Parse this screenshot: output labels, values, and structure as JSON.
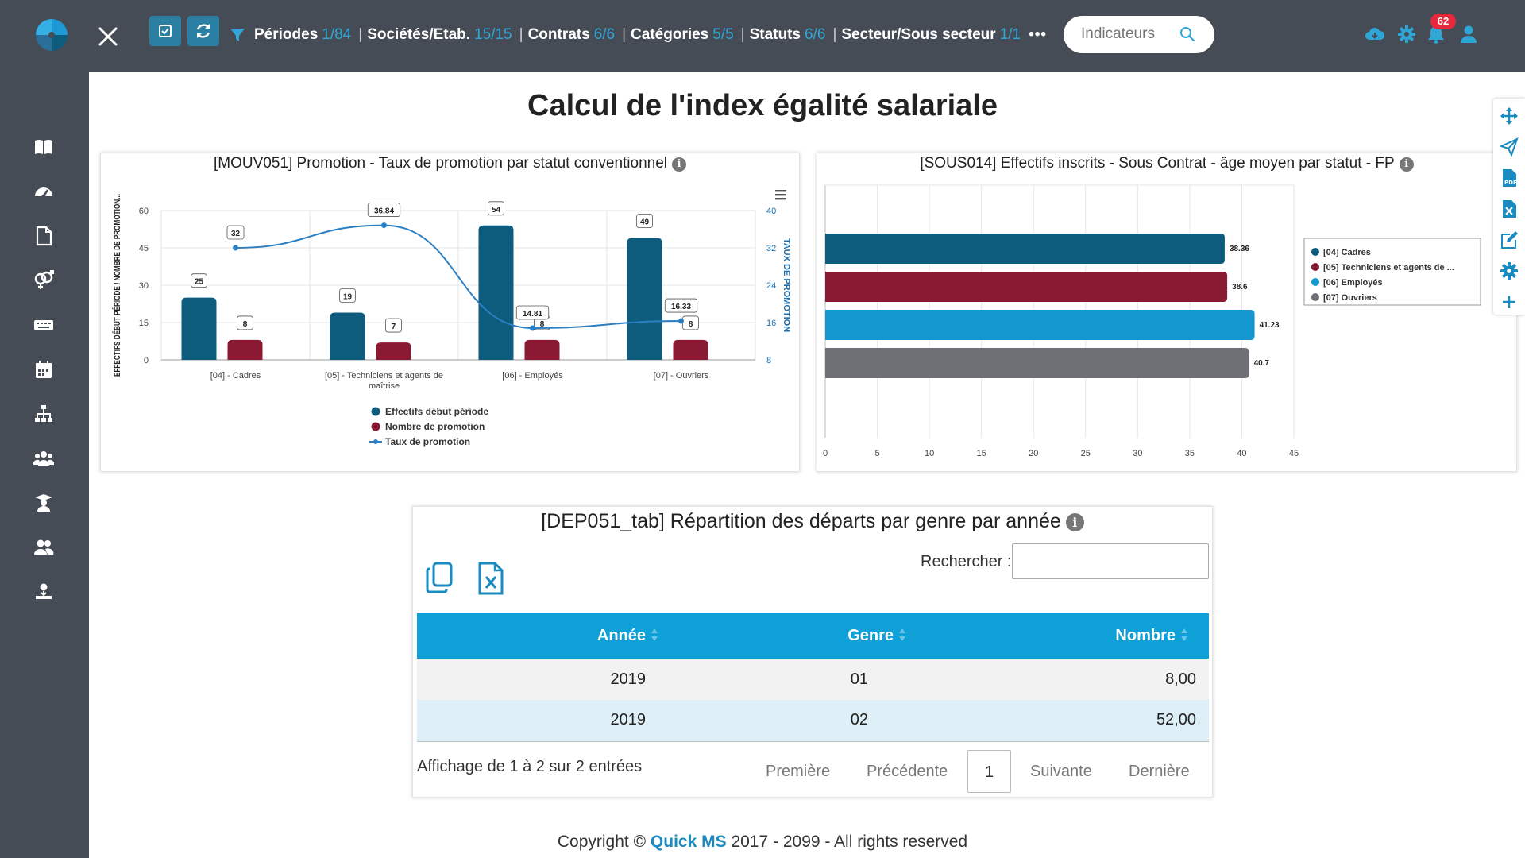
{
  "topbar": {
    "filters": [
      {
        "label": "Périodes",
        "count": "1/84"
      },
      {
        "label": "Sociétés/Etab.",
        "count": "15/15"
      },
      {
        "label": "Contrats",
        "count": "6/6"
      },
      {
        "label": "Catégories",
        "count": "5/5"
      },
      {
        "label": "Statuts",
        "count": "6/6"
      },
      {
        "label": "Secteur/Sous secteur",
        "count": "1/1"
      }
    ],
    "more": "•••",
    "search_placeholder": "Indicateurs",
    "notifications": "62"
  },
  "sidebar": {
    "icons": [
      "book-icon",
      "dashboard-gauge-icon",
      "document-icon",
      "gender-icon",
      "keyboard-icon",
      "calendar-icon",
      "org-chart-icon",
      "team-icon",
      "graduate-icon",
      "users-icon",
      "user-transfer-icon"
    ]
  },
  "page": {
    "title": "Calcul de l'index égalité salariale"
  },
  "chart1": {
    "title": "[MOUV051] Promotion - Taux de promotion par statut conventionnel"
  },
  "chart2": {
    "title": "[SOUS014] Effectifs inscrits - Sous Contrat - âge moyen par statut - FP"
  },
  "chart_data": [
    {
      "type": "bar",
      "title": "[MOUV051] Promotion - Taux de promotion par statut conventionnel",
      "categories": [
        "[04] - Cadres",
        "[05] - Techniciens et agents de maîtrise",
        "[06] - Employés",
        "[07] - Ouvriers"
      ],
      "series": [
        {
          "name": "Effectifs début période",
          "type": "bar",
          "axis": "left",
          "color": "#0d5c7d",
          "values": [
            25,
            19,
            54,
            49
          ]
        },
        {
          "name": "Nombre de promotion",
          "type": "bar",
          "axis": "left",
          "color": "#8a1a33",
          "values": [
            8,
            7,
            8,
            8
          ]
        },
        {
          "name": "Taux de promotion",
          "type": "line",
          "axis": "right",
          "color": "#2b7fc3",
          "values": [
            32,
            36.84,
            14.81,
            16.33
          ]
        }
      ],
      "ylabel": "EFFECTIFS DÉBUT PÉRIODE / NOMBRE DE PROMOTION...",
      "y2label": "TAUX DE PROMOTION",
      "ylim": [
        0,
        60
      ],
      "yticks": [
        0,
        15,
        30,
        45,
        60
      ],
      "y2lim": [
        8,
        40
      ],
      "y2ticks": [
        8,
        16,
        24,
        32,
        40
      ],
      "legend": "bottom",
      "grid": true
    },
    {
      "type": "bar",
      "orientation": "horizontal",
      "title": "[SOUS014] Effectifs inscrits - Sous Contrat - âge moyen par statut - FP",
      "categories": [
        "[04] Cadres",
        "[05] Techniciens et agents de ...",
        "[06] Employés",
        "[07] Ouvriers"
      ],
      "values": [
        38.36,
        38.6,
        41.23,
        40.7
      ],
      "colors": [
        "#0d5c7d",
        "#8a1a33",
        "#1597cf",
        "#6e7076"
      ],
      "xlim": [
        0,
        45
      ],
      "xticks": [
        0,
        5,
        10,
        15,
        20,
        25,
        30,
        35,
        40,
        45
      ],
      "legend": "right",
      "grid": true
    }
  ],
  "table_panel": {
    "title": "[DEP051_tab] Répartition des départs par genre par année",
    "search_label": "Rechercher :",
    "columns": [
      "Année",
      "Genre",
      "Nombre"
    ],
    "rows": [
      [
        "2019",
        "01",
        "8,00"
      ],
      [
        "2019",
        "02",
        "52,00"
      ]
    ],
    "info": "Affichage de 1 à 2 sur 2 entrées",
    "pager": {
      "first": "Première",
      "prev": "Précédente",
      "current": "1",
      "next": "Suivante",
      "last": "Dernière"
    }
  },
  "footer": {
    "prefix": "Copyright ©",
    "brand": "Quick MS",
    "suffix": "2017 - 2099 - All rights reserved"
  }
}
